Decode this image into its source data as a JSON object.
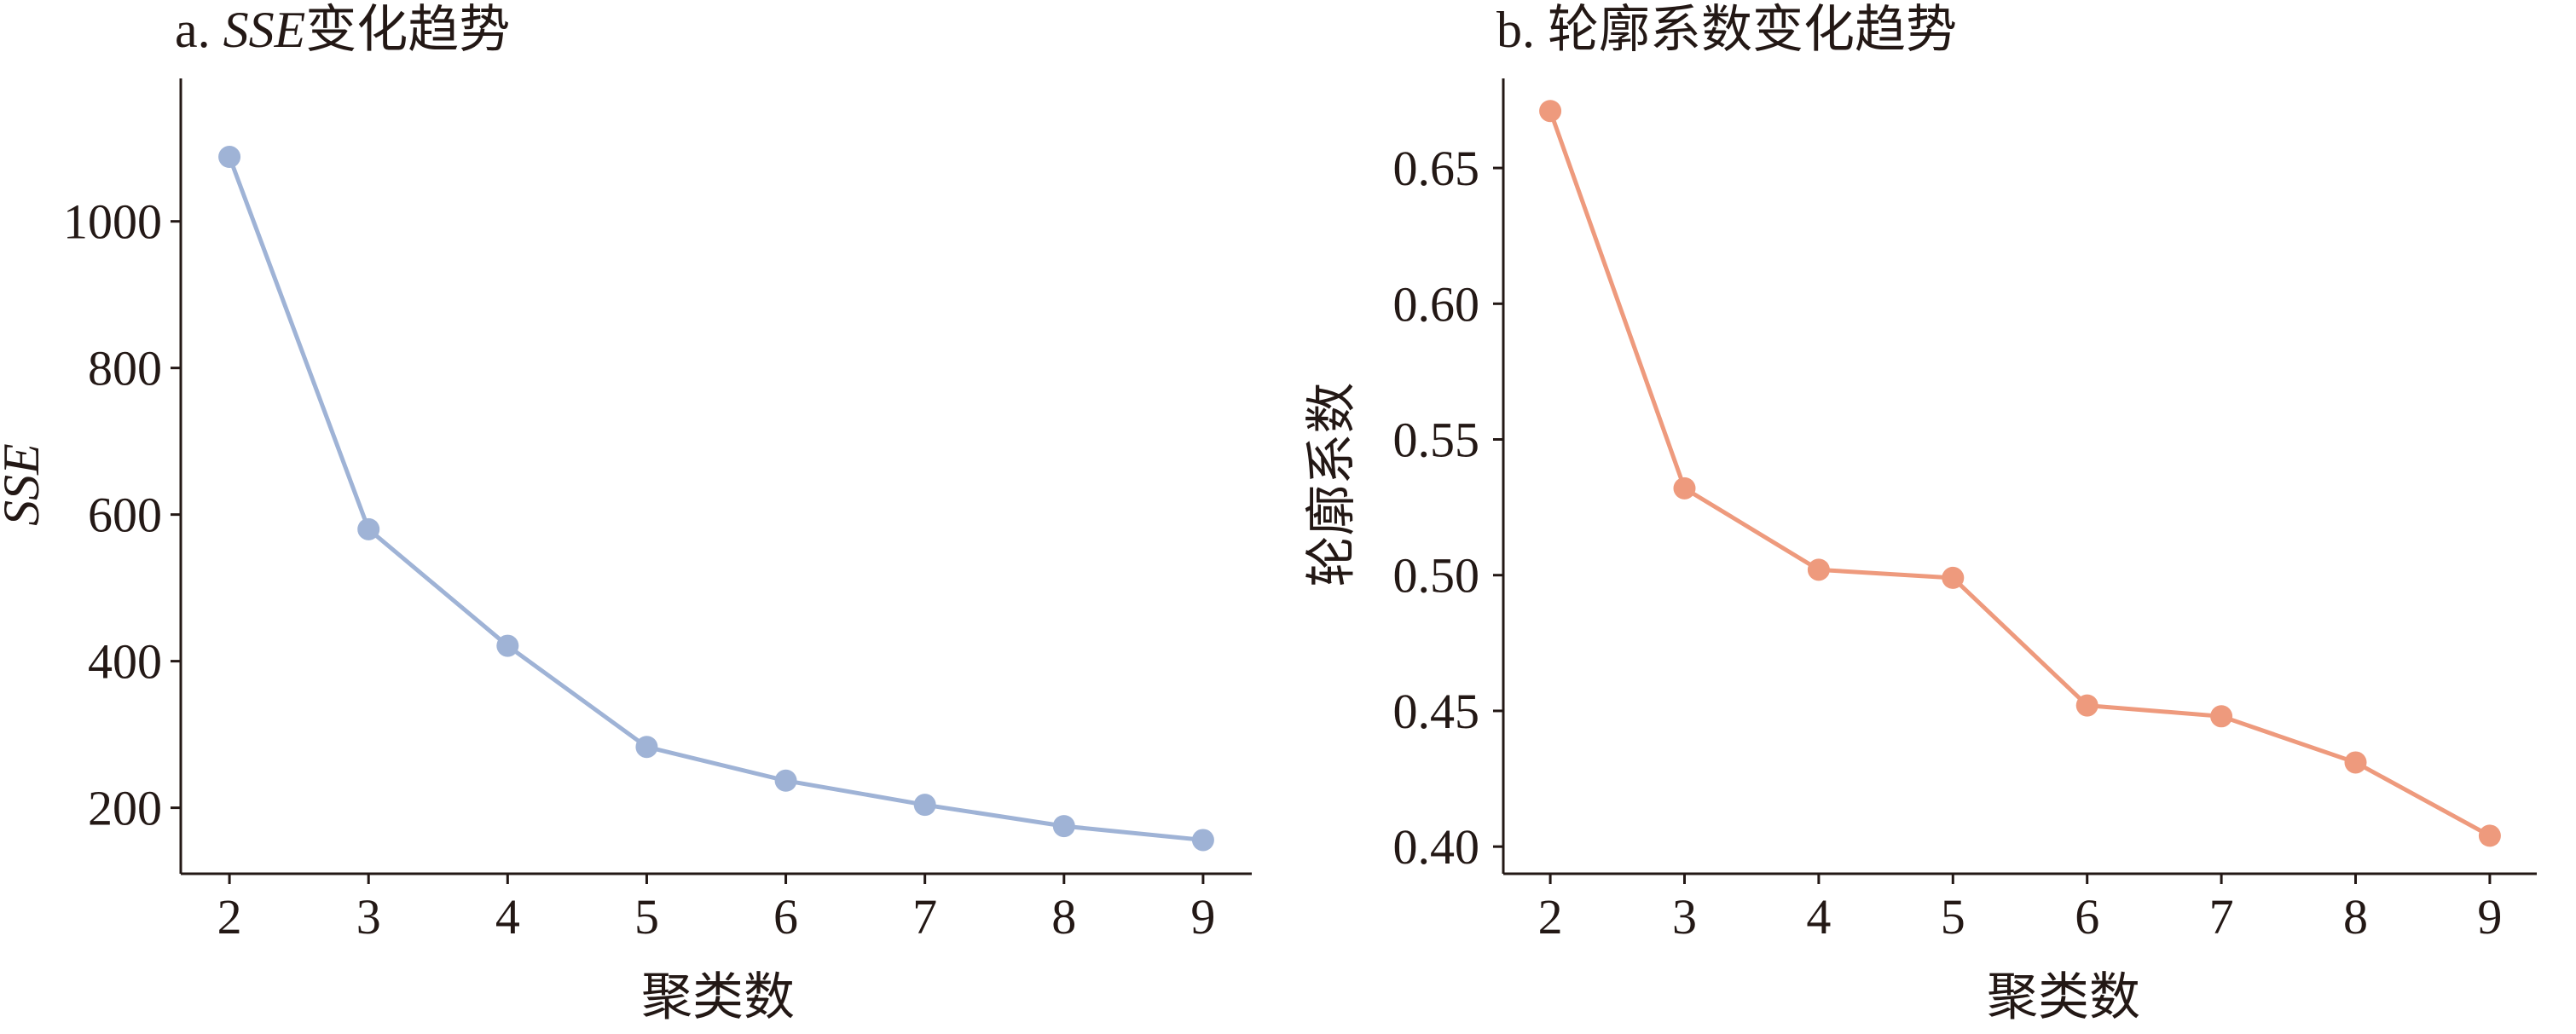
{
  "chart_data": [
    {
      "type": "line",
      "title_prefix": "a. ",
      "title_italic": "SSE",
      "title_suffix": "变化趋势",
      "xlabel": "聚类数",
      "ylabel": "SSE",
      "ylabel_italic": true,
      "x": [
        2,
        3,
        4,
        5,
        6,
        7,
        8,
        9
      ],
      "xlim": [
        1.65,
        9.35
      ],
      "ylim": [
        110,
        1195
      ],
      "yticks": [
        200,
        400,
        600,
        800,
        1000
      ],
      "ytick_labels": [
        "200",
        "400",
        "600",
        "800",
        "1000"
      ],
      "series": [
        {
          "values": [
            1088,
            580,
            421,
            283,
            237,
            204,
            175,
            156
          ],
          "color": "#9fb3d6"
        }
      ],
      "grid": false
    },
    {
      "type": "line",
      "title_prefix": "b. ",
      "title_italic": "",
      "title_suffix": "轮廓系数变化趋势",
      "xlabel": "聚类数",
      "ylabel": "轮廓系数",
      "ylabel_italic": false,
      "x": [
        2,
        3,
        4,
        5,
        6,
        7,
        8,
        9
      ],
      "xlim": [
        1.65,
        9.35
      ],
      "ylim": [
        0.39,
        0.683
      ],
      "yticks": [
        0.4,
        0.45,
        0.5,
        0.55,
        0.6,
        0.65
      ],
      "ytick_labels": [
        "0.40",
        "0.45",
        "0.50",
        "0.55",
        "0.60",
        "0.65"
      ],
      "series": [
        {
          "values": [
            0.671,
            0.532,
            0.502,
            0.499,
            0.452,
            0.448,
            0.431,
            0.404
          ],
          "color": "#ee9a7d"
        }
      ],
      "grid": false
    }
  ]
}
